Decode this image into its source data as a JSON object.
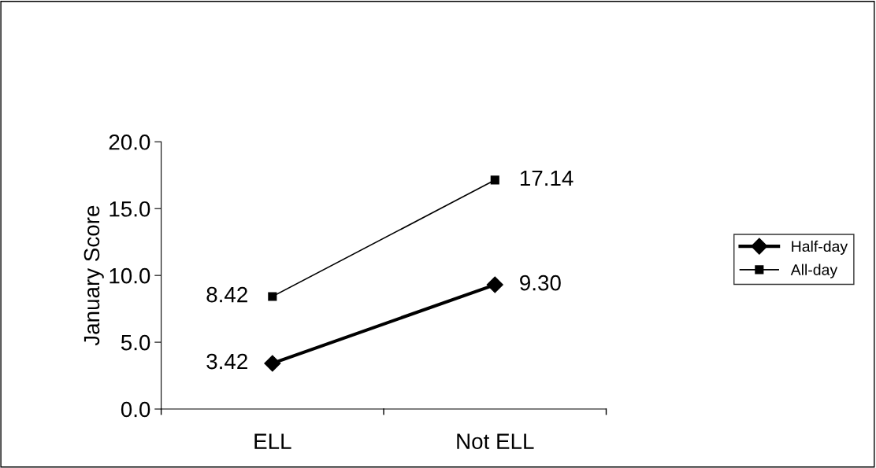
{
  "chart_data": {
    "type": "line",
    "ylabel": "January Score",
    "categories": [
      "ELL",
      "Not ELL"
    ],
    "series": [
      {
        "name": "Half-day",
        "color": "#000000",
        "values": [
          3.42,
          9.3
        ],
        "marker": "diamond"
      },
      {
        "name": "All-day",
        "color": "#000000",
        "values": [
          8.42,
          17.14
        ],
        "marker": "square"
      }
    ],
    "ylim": [
      0,
      20
    ],
    "yticks": [
      {
        "value": 0,
        "label": "0.0"
      },
      {
        "value": 5,
        "label": "5.0"
      },
      {
        "value": 10,
        "label": "10.0"
      },
      {
        "value": 15,
        "label": "15.0"
      },
      {
        "value": 20,
        "label": "20.0"
      }
    ],
    "value_labels": [
      [
        "3.42",
        "9.30"
      ],
      [
        "8.42",
        "17.14"
      ]
    ],
    "grid": false,
    "legend": "right",
    "line_style": "solid"
  }
}
